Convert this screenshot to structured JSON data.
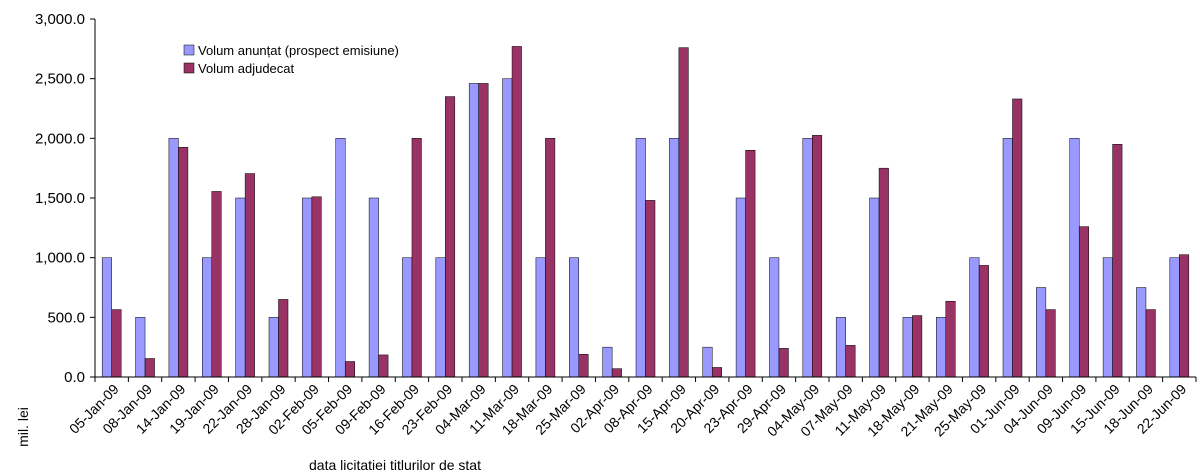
{
  "chart_data": {
    "type": "bar",
    "title": "",
    "xlabel": "data  licitatiei  titlurilor de stat",
    "ylabel": "mil. lei",
    "ylim": [
      0,
      3000
    ],
    "ytick_labels": [
      "0.0",
      "500.0",
      "1,000.0",
      "1,500.0",
      "2,000.0",
      "2,500.0",
      "3,000.0"
    ],
    "yticks": [
      0,
      500,
      1000,
      1500,
      2000,
      2500,
      3000
    ],
    "grid": false,
    "legend_position": "top-left",
    "categories": [
      "05-Jan-09",
      "08-Jan-09",
      "14-Jan-09",
      "19-Jan-09",
      "22-Jan-09",
      "28-Jan-09",
      "02-Feb-09",
      "05-Feb-09",
      "09-Feb-09",
      "16-Feb-09",
      "23-Feb-09",
      "04-Mar-09",
      "11-Mar-09",
      "18-Mar-09",
      "25-Mar-09",
      "02-Apr-09",
      "08-Apr-09",
      "15-Apr-09",
      "20-Apr-09",
      "23-Apr-09",
      "29-Apr-09",
      "04-May-09",
      "07-May-09",
      "11-May-09",
      "18-May-09",
      "21-May-09",
      "25-May-09",
      "01-Jun-09",
      "04-Jun-09",
      "09-Jun-09",
      "15-Jun-09",
      "18-Jun-09",
      "22-Jun-09"
    ],
    "series": [
      {
        "name": "Volum anunțat (prospect emisiune)",
        "color": "#9999ff",
        "values": [
          1000,
          500,
          2000,
          1000,
          1500,
          500,
          1500,
          2000,
          1500,
          1000,
          1000,
          2460,
          2500,
          1000,
          1000,
          250,
          2000,
          2000,
          250,
          1500,
          1000,
          2000,
          500,
          1500,
          500,
          500,
          1000,
          2000,
          750,
          2000,
          1000,
          750,
          1000
        ]
      },
      {
        "name": "Volum adjudecat",
        "color": "#993366",
        "values": [
          565,
          155,
          1925,
          1555,
          1705,
          650,
          1510,
          130,
          185,
          2000,
          2350,
          2460,
          2770,
          2000,
          190,
          70,
          1480,
          2760,
          80,
          1900,
          240,
          2025,
          265,
          1750,
          515,
          635,
          935,
          2330,
          565,
          1260,
          1950,
          565,
          1025
        ]
      }
    ]
  }
}
